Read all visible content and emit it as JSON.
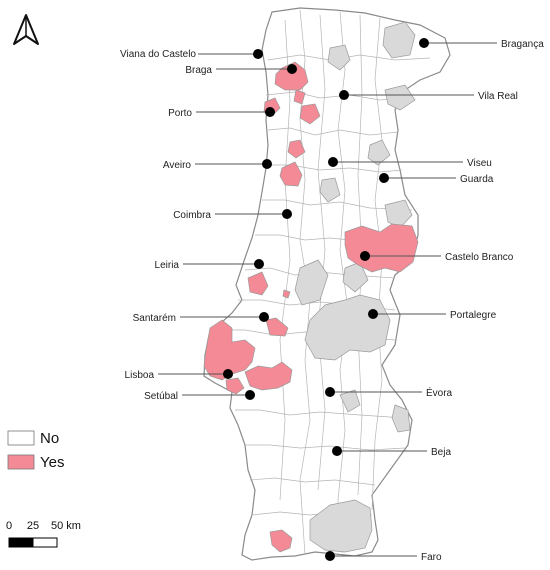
{
  "legend": {
    "items": [
      {
        "label": "No",
        "color": "#ffffff"
      },
      {
        "label": "Yes",
        "color": "#f48a95"
      }
    ]
  },
  "scale_bar": {
    "ticks": [
      "0",
      "25",
      "50 km"
    ]
  },
  "north_arrow": {
    "icon": "north-arrow-icon"
  },
  "colors": {
    "yes": "#f48a95",
    "no": "#ffffff",
    "unavailable": "#d9d9d9",
    "border": "#9a9a9a"
  },
  "cities": [
    {
      "name": "Viana do Castelo"
    },
    {
      "name": "Braga"
    },
    {
      "name": "Porto"
    },
    {
      "name": "Aveiro"
    },
    {
      "name": "Coimbra"
    },
    {
      "name": "Leiria"
    },
    {
      "name": "Santarém"
    },
    {
      "name": "Lisboa"
    },
    {
      "name": "Setúbal"
    },
    {
      "name": "Bragança"
    },
    {
      "name": "Vila Real"
    },
    {
      "name": "Viseu"
    },
    {
      "name": "Guarda"
    },
    {
      "name": "Castelo Branco"
    },
    {
      "name": "Portalegre"
    },
    {
      "name": "Évora"
    },
    {
      "name": "Beja"
    },
    {
      "name": "Faro"
    }
  ]
}
